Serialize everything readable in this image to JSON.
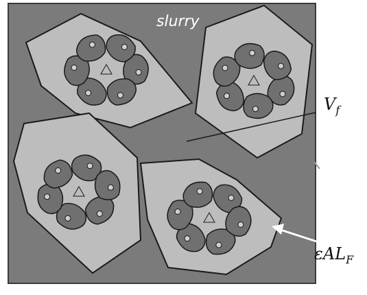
{
  "labels": {
    "slurry": "slurry",
    "vf_main": "V",
    "vf_sub": "f",
    "eal_main": "εAL",
    "eal_sub": "F"
  },
  "colors": {
    "background": "#7b7b7b",
    "floc_fill": "#bdbdbd",
    "particle_fill": "#707070",
    "outline": "#1a1a1a",
    "pore": "#cfcfcf",
    "annotation_text": "#111111"
  },
  "icons": {
    "arrow": "white-arrow-icon",
    "leader": "leader-line-icon"
  }
}
